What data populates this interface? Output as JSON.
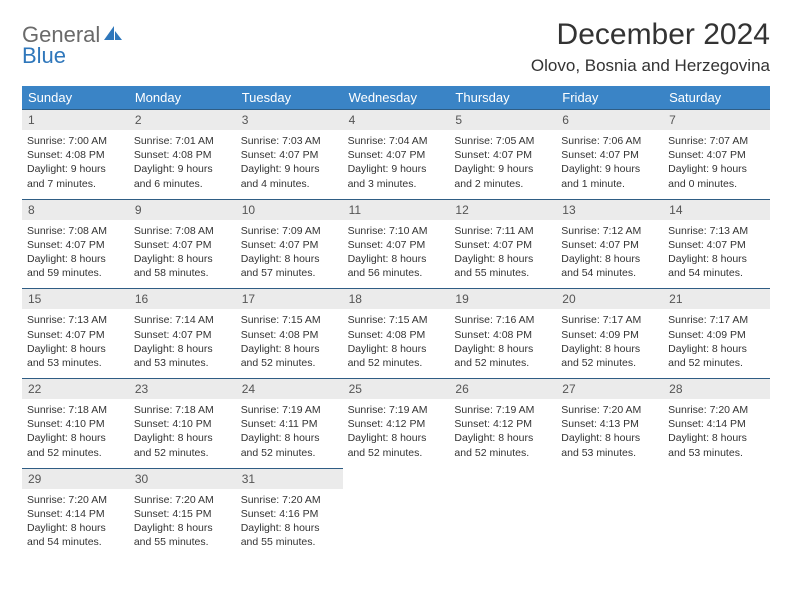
{
  "logo": {
    "word1": "General",
    "word2": "Blue"
  },
  "title": {
    "month": "December 2024",
    "location": "Olovo, Bosnia and Herzegovina"
  },
  "weekdays": [
    "Sunday",
    "Monday",
    "Tuesday",
    "Wednesday",
    "Thursday",
    "Friday",
    "Saturday"
  ],
  "colors": {
    "header_bg": "#3a84c6",
    "header_fg": "#ffffff",
    "daynum_bg": "#ebebeb",
    "daynum_border": "#2f5d84",
    "logo_gray": "#6a6a6a",
    "logo_blue": "#2f77bb"
  },
  "weeks": [
    [
      {
        "n": "1",
        "sr": "7:00 AM",
        "ss": "4:08 PM",
        "dl": "9 hours and 7 minutes."
      },
      {
        "n": "2",
        "sr": "7:01 AM",
        "ss": "4:08 PM",
        "dl": "9 hours and 6 minutes."
      },
      {
        "n": "3",
        "sr": "7:03 AM",
        "ss": "4:07 PM",
        "dl": "9 hours and 4 minutes."
      },
      {
        "n": "4",
        "sr": "7:04 AM",
        "ss": "4:07 PM",
        "dl": "9 hours and 3 minutes."
      },
      {
        "n": "5",
        "sr": "7:05 AM",
        "ss": "4:07 PM",
        "dl": "9 hours and 2 minutes."
      },
      {
        "n": "6",
        "sr": "7:06 AM",
        "ss": "4:07 PM",
        "dl": "9 hours and 1 minute."
      },
      {
        "n": "7",
        "sr": "7:07 AM",
        "ss": "4:07 PM",
        "dl": "9 hours and 0 minutes."
      }
    ],
    [
      {
        "n": "8",
        "sr": "7:08 AM",
        "ss": "4:07 PM",
        "dl": "8 hours and 59 minutes."
      },
      {
        "n": "9",
        "sr": "7:08 AM",
        "ss": "4:07 PM",
        "dl": "8 hours and 58 minutes."
      },
      {
        "n": "10",
        "sr": "7:09 AM",
        "ss": "4:07 PM",
        "dl": "8 hours and 57 minutes."
      },
      {
        "n": "11",
        "sr": "7:10 AM",
        "ss": "4:07 PM",
        "dl": "8 hours and 56 minutes."
      },
      {
        "n": "12",
        "sr": "7:11 AM",
        "ss": "4:07 PM",
        "dl": "8 hours and 55 minutes."
      },
      {
        "n": "13",
        "sr": "7:12 AM",
        "ss": "4:07 PM",
        "dl": "8 hours and 54 minutes."
      },
      {
        "n": "14",
        "sr": "7:13 AM",
        "ss": "4:07 PM",
        "dl": "8 hours and 54 minutes."
      }
    ],
    [
      {
        "n": "15",
        "sr": "7:13 AM",
        "ss": "4:07 PM",
        "dl": "8 hours and 53 minutes."
      },
      {
        "n": "16",
        "sr": "7:14 AM",
        "ss": "4:07 PM",
        "dl": "8 hours and 53 minutes."
      },
      {
        "n": "17",
        "sr": "7:15 AM",
        "ss": "4:08 PM",
        "dl": "8 hours and 52 minutes."
      },
      {
        "n": "18",
        "sr": "7:15 AM",
        "ss": "4:08 PM",
        "dl": "8 hours and 52 minutes."
      },
      {
        "n": "19",
        "sr": "7:16 AM",
        "ss": "4:08 PM",
        "dl": "8 hours and 52 minutes."
      },
      {
        "n": "20",
        "sr": "7:17 AM",
        "ss": "4:09 PM",
        "dl": "8 hours and 52 minutes."
      },
      {
        "n": "21",
        "sr": "7:17 AM",
        "ss": "4:09 PM",
        "dl": "8 hours and 52 minutes."
      }
    ],
    [
      {
        "n": "22",
        "sr": "7:18 AM",
        "ss": "4:10 PM",
        "dl": "8 hours and 52 minutes."
      },
      {
        "n": "23",
        "sr": "7:18 AM",
        "ss": "4:10 PM",
        "dl": "8 hours and 52 minutes."
      },
      {
        "n": "24",
        "sr": "7:19 AM",
        "ss": "4:11 PM",
        "dl": "8 hours and 52 minutes."
      },
      {
        "n": "25",
        "sr": "7:19 AM",
        "ss": "4:12 PM",
        "dl": "8 hours and 52 minutes."
      },
      {
        "n": "26",
        "sr": "7:19 AM",
        "ss": "4:12 PM",
        "dl": "8 hours and 52 minutes."
      },
      {
        "n": "27",
        "sr": "7:20 AM",
        "ss": "4:13 PM",
        "dl": "8 hours and 53 minutes."
      },
      {
        "n": "28",
        "sr": "7:20 AM",
        "ss": "4:14 PM",
        "dl": "8 hours and 53 minutes."
      }
    ],
    [
      {
        "n": "29",
        "sr": "7:20 AM",
        "ss": "4:14 PM",
        "dl": "8 hours and 54 minutes."
      },
      {
        "n": "30",
        "sr": "7:20 AM",
        "ss": "4:15 PM",
        "dl": "8 hours and 55 minutes."
      },
      {
        "n": "31",
        "sr": "7:20 AM",
        "ss": "4:16 PM",
        "dl": "8 hours and 55 minutes."
      },
      null,
      null,
      null,
      null
    ]
  ]
}
